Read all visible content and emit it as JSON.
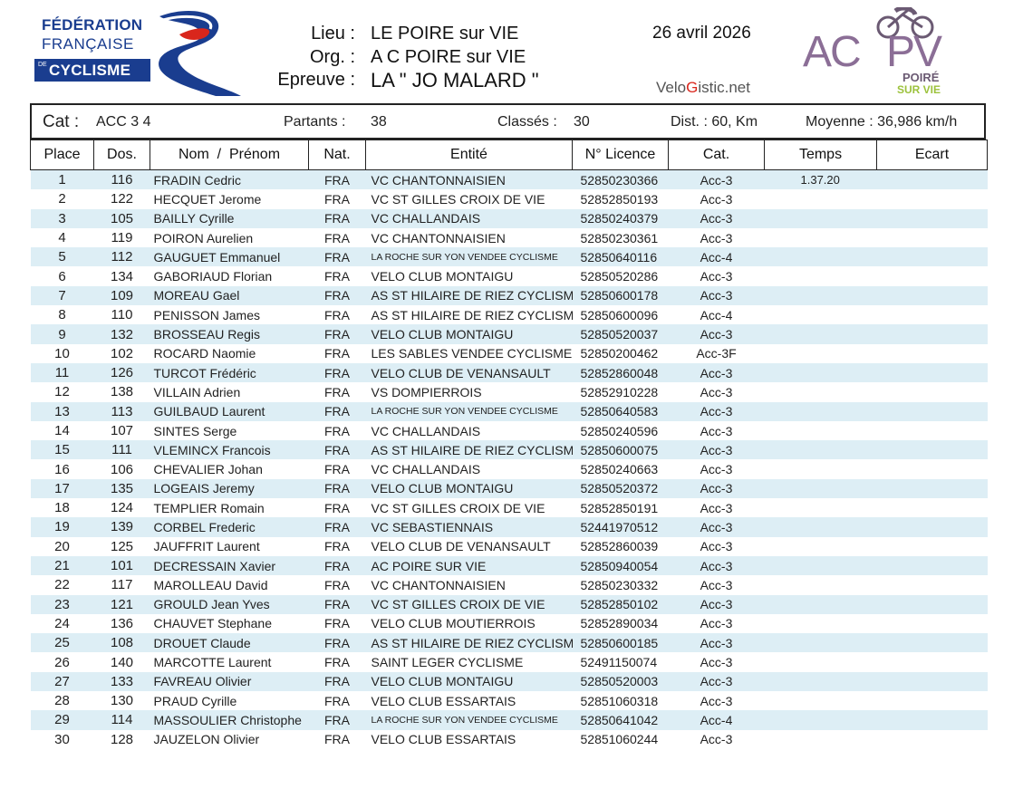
{
  "header": {
    "ffc_logo": {
      "line1": "FÉDÉRATION",
      "line2": "FRANÇAISE",
      "de": "DE",
      "line3": "CYCLISME"
    },
    "lieu_label": "Lieu :",
    "lieu_value": "LE POIRE sur VIE",
    "org_label": "Org. :",
    "org_value": "A C POIRE sur VIE",
    "epreuve_label": "Epreuve :",
    "epreuve_value": "LA \" JO MALARD \"",
    "date": "26 avril 2026",
    "velogistic_a": "Velo",
    "velogistic_b": "G",
    "velogistic_c": "istic.net",
    "club_logo": {
      "ac": "AC",
      "pv": "PV",
      "poire": "POIRÉ",
      "sur_vie": "SUR VIE"
    }
  },
  "info": {
    "cat_label": "Cat :",
    "cat_value": "ACC 3 4",
    "partants_label": "Partants :",
    "partants_value": "38",
    "classes_label": "Classés :",
    "classes_value": "30",
    "dist": "Dist. : 60, Km",
    "moyenne": "Moyenne : 36,986 km/h"
  },
  "columns": [
    "Place",
    "Dos.",
    "Nom  /  Prénom",
    "Nat.",
    "Entité",
    "N° Licence",
    "Cat.",
    "Temps",
    "Ecart"
  ],
  "rows": [
    {
      "place": "1",
      "dos": "116",
      "name": "FRADIN  Cedric",
      "nat": "FRA",
      "ent": "VC CHANTONNAISIEN",
      "lic": "52850230366",
      "cat": "Acc-3",
      "temps": "1.37.20",
      "ecart": ""
    },
    {
      "place": "2",
      "dos": "122",
      "name": "HECQUET  Jerome",
      "nat": "FRA",
      "ent": "VC ST GILLES CROIX DE VIE",
      "lic": "52852850193",
      "cat": "Acc-3",
      "temps": "",
      "ecart": ""
    },
    {
      "place": "3",
      "dos": "105",
      "name": "BAILLY  Cyrille",
      "nat": "FRA",
      "ent": "VC CHALLANDAIS",
      "lic": "52850240379",
      "cat": "Acc-3",
      "temps": "",
      "ecart": ""
    },
    {
      "place": "4",
      "dos": "119",
      "name": "POIRON  Aurelien",
      "nat": "FRA",
      "ent": "VC CHANTONNAISIEN",
      "lic": "52850230361",
      "cat": "Acc-3",
      "temps": "",
      "ecart": ""
    },
    {
      "place": "5",
      "dos": "112",
      "name": "GAUGUET  Emmanuel",
      "nat": "FRA",
      "ent": "LA ROCHE SUR YON VENDEE CYCLISME",
      "small": true,
      "lic": "52850640116",
      "cat": "Acc-4",
      "temps": "",
      "ecart": ""
    },
    {
      "place": "6",
      "dos": "134",
      "name": "GABORIAUD  Florian",
      "nat": "FRA",
      "ent": "VELO CLUB MONTAIGU",
      "lic": "52850520286",
      "cat": "Acc-3",
      "temps": "",
      "ecart": ""
    },
    {
      "place": "7",
      "dos": "109",
      "name": "MOREAU  Gael",
      "nat": "FRA",
      "ent": "AS ST HILAIRE DE RIEZ CYCLISME",
      "lic": "52850600178",
      "cat": "Acc-3",
      "temps": "",
      "ecart": ""
    },
    {
      "place": "8",
      "dos": "110",
      "name": "PENISSON  James",
      "nat": "FRA",
      "ent": "AS ST HILAIRE DE RIEZ CYCLISME",
      "lic": "52850600096",
      "cat": "Acc-4",
      "temps": "",
      "ecart": ""
    },
    {
      "place": "9",
      "dos": "132",
      "name": "BROSSEAU  Regis",
      "nat": "FRA",
      "ent": "VELO CLUB MONTAIGU",
      "lic": "52850520037",
      "cat": "Acc-3",
      "temps": "",
      "ecart": ""
    },
    {
      "place": "10",
      "dos": "102",
      "name": "ROCARD  Naomie",
      "nat": "FRA",
      "ent": "LES SABLES VENDEE CYCLISME",
      "lic": "52850200462",
      "cat": "Acc-3F",
      "temps": "",
      "ecart": ""
    },
    {
      "place": "11",
      "dos": "126",
      "name": "TURCOT  Frédéric",
      "nat": "FRA",
      "ent": "VELO CLUB DE VENANSAULT",
      "lic": "52852860048",
      "cat": "Acc-3",
      "temps": "",
      "ecart": ""
    },
    {
      "place": "12",
      "dos": "138",
      "name": "VILLAIN  Adrien",
      "nat": "FRA",
      "ent": "VS DOMPIERROIS",
      "lic": "52852910228",
      "cat": "Acc-3",
      "temps": "",
      "ecart": ""
    },
    {
      "place": "13",
      "dos": "113",
      "name": "GUILBAUD  Laurent",
      "nat": "FRA",
      "ent": "LA ROCHE SUR YON VENDEE CYCLISME",
      "small": true,
      "lic": "52850640583",
      "cat": "Acc-3",
      "temps": "",
      "ecart": ""
    },
    {
      "place": "14",
      "dos": "107",
      "name": "SINTES  Serge",
      "nat": "FRA",
      "ent": "VC CHALLANDAIS",
      "lic": "52850240596",
      "cat": "Acc-3",
      "temps": "",
      "ecart": ""
    },
    {
      "place": "15",
      "dos": "111",
      "name": "VLEMINCX  Francois",
      "nat": "FRA",
      "ent": "AS ST HILAIRE DE RIEZ CYCLISME",
      "lic": "52850600075",
      "cat": "Acc-3",
      "temps": "",
      "ecart": ""
    },
    {
      "place": "16",
      "dos": "106",
      "name": "CHEVALIER  Johan",
      "nat": "FRA",
      "ent": "VC CHALLANDAIS",
      "lic": "52850240663",
      "cat": "Acc-3",
      "temps": "",
      "ecart": ""
    },
    {
      "place": "17",
      "dos": "135",
      "name": "LOGEAIS  Jeremy",
      "nat": "FRA",
      "ent": "VELO CLUB MONTAIGU",
      "lic": "52850520372",
      "cat": "Acc-3",
      "temps": "",
      "ecart": ""
    },
    {
      "place": "18",
      "dos": "124",
      "name": "TEMPLIER  Romain",
      "nat": "FRA",
      "ent": "VC ST GILLES CROIX DE VIE",
      "lic": "52852850191",
      "cat": "Acc-3",
      "temps": "",
      "ecart": ""
    },
    {
      "place": "19",
      "dos": "139",
      "name": "CORBEL  Frederic",
      "nat": "FRA",
      "ent": "VC SEBASTIENNAIS",
      "lic": "52441970512",
      "cat": "Acc-3",
      "temps": "",
      "ecart": ""
    },
    {
      "place": "20",
      "dos": "125",
      "name": "JAUFFRIT  Laurent",
      "nat": "FRA",
      "ent": "VELO CLUB DE VENANSAULT",
      "lic": "52852860039",
      "cat": "Acc-3",
      "temps": "",
      "ecart": ""
    },
    {
      "place": "21",
      "dos": "101",
      "name": "DECRESSAIN  Xavier",
      "nat": "FRA",
      "ent": "AC POIRE SUR VIE",
      "lic": "52850940054",
      "cat": "Acc-3",
      "temps": "",
      "ecart": ""
    },
    {
      "place": "22",
      "dos": "117",
      "name": "MAROLLEAU  David",
      "nat": "FRA",
      "ent": "VC CHANTONNAISIEN",
      "lic": "52850230332",
      "cat": "Acc-3",
      "temps": "",
      "ecart": ""
    },
    {
      "place": "23",
      "dos": "121",
      "name": "GROULD  Jean Yves",
      "nat": "FRA",
      "ent": "VC ST GILLES CROIX DE VIE",
      "lic": "52852850102",
      "cat": "Acc-3",
      "temps": "",
      "ecart": ""
    },
    {
      "place": "24",
      "dos": "136",
      "name": "CHAUVET  Stephane",
      "nat": "FRA",
      "ent": "VELO CLUB MOUTIERROIS",
      "lic": "52852890034",
      "cat": "Acc-3",
      "temps": "",
      "ecart": ""
    },
    {
      "place": "25",
      "dos": "108",
      "name": "DROUET  Claude",
      "nat": "FRA",
      "ent": "AS ST HILAIRE DE RIEZ CYCLISME",
      "lic": "52850600185",
      "cat": "Acc-3",
      "temps": "",
      "ecart": ""
    },
    {
      "place": "26",
      "dos": "140",
      "name": "MARCOTTE  Laurent",
      "nat": "FRA",
      "ent": "SAINT LEGER CYCLISME",
      "lic": "52491150074",
      "cat": "Acc-3",
      "temps": "",
      "ecart": ""
    },
    {
      "place": "27",
      "dos": "133",
      "name": "FAVREAU  Olivier",
      "nat": "FRA",
      "ent": "VELO CLUB MONTAIGU",
      "lic": "52850520003",
      "cat": "Acc-3",
      "temps": "",
      "ecart": ""
    },
    {
      "place": "28",
      "dos": "130",
      "name": "PRAUD  Cyrille",
      "nat": "FRA",
      "ent": "VELO CLUB ESSARTAIS",
      "lic": "52851060318",
      "cat": "Acc-3",
      "temps": "",
      "ecart": ""
    },
    {
      "place": "29",
      "dos": "114",
      "name": "MASSOULIER  Christophe",
      "nat": "FRA",
      "ent": "LA ROCHE SUR YON VENDEE CYCLISME",
      "small": true,
      "lic": "52850641042",
      "cat": "Acc-4",
      "temps": "",
      "ecart": ""
    },
    {
      "place": "30",
      "dos": "128",
      "name": "JAUZELON  Olivier",
      "nat": "FRA",
      "ent": "VELO CLUB ESSARTAIS",
      "lic": "52851060244",
      "cat": "Acc-3",
      "temps": "",
      "ecart": ""
    }
  ]
}
